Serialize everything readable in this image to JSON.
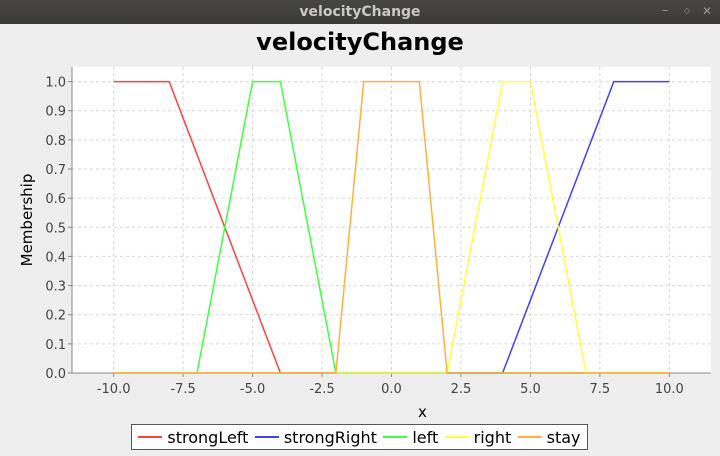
{
  "window": {
    "title": "velocityChange",
    "controls": {
      "minimize": "–",
      "maximize": "◇",
      "close": "✕"
    }
  },
  "chart_data": {
    "type": "line",
    "title": "velocityChange",
    "xlabel": "x",
    "ylabel": "Membership",
    "xlim": [
      -11.5,
      11.5
    ],
    "ylim": [
      0,
      1.05
    ],
    "x_ticks": [
      "-10.0",
      "-7.5",
      "-5.0",
      "-2.5",
      "0.0",
      "2.5",
      "5.0",
      "7.5",
      "10.0"
    ],
    "y_ticks": [
      "0.0",
      "0.1",
      "0.2",
      "0.3",
      "0.4",
      "0.5",
      "0.6",
      "0.7",
      "0.8",
      "0.9",
      "1.0"
    ],
    "grid": true,
    "legend_position": "bottom",
    "series": [
      {
        "name": "strongLeft",
        "color": "#ff4040",
        "x": [
          -10,
          -8,
          -4,
          10
        ],
        "y": [
          1,
          1,
          0,
          0
        ]
      },
      {
        "name": "strongRight",
        "color": "#4040ff",
        "x": [
          -10,
          4,
          8,
          10
        ],
        "y": [
          0,
          0,
          1,
          1
        ]
      },
      {
        "name": "left",
        "color": "#40ff40",
        "x": [
          -10,
          -7,
          -5,
          -4,
          -2,
          10
        ],
        "y": [
          0,
          0,
          1,
          1,
          0,
          0
        ]
      },
      {
        "name": "right",
        "color": "#ffff40",
        "x": [
          -10,
          2,
          4,
          5,
          7,
          10
        ],
        "y": [
          0,
          0,
          1,
          1,
          0,
          0
        ]
      },
      {
        "name": "stay",
        "color": "#ffb040",
        "x": [
          -10,
          -2,
          -1,
          1,
          2,
          10
        ],
        "y": [
          0,
          0,
          1,
          1,
          0,
          0
        ]
      }
    ]
  }
}
